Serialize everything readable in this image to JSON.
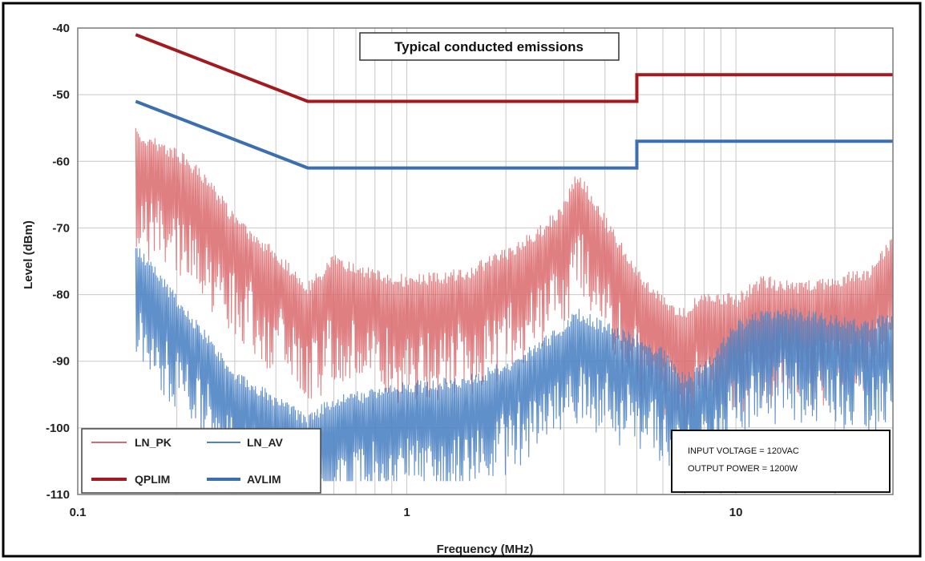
{
  "chart_data": {
    "type": "line",
    "title": "Typical conducted emissions",
    "xlabel": "Frequency (MHz)",
    "ylabel": "Level (dBm)",
    "x_scale": "log",
    "xlim": [
      0.1,
      30
    ],
    "ylim": [
      -110,
      -40
    ],
    "grid": true,
    "x_tick_labels": [
      "0.1",
      "1",
      "10"
    ],
    "y_tick_labels": [
      "-40",
      "-50",
      "-60",
      "-70",
      "-80",
      "-90",
      "-100",
      "-110"
    ],
    "legend_position": "bottom-left",
    "series": [
      {
        "name": "LN_PK",
        "color": "#d9686c",
        "style": "noisy spectrum",
        "x": [
          0.15,
          0.2,
          0.25,
          0.3,
          0.4,
          0.5,
          0.6,
          0.8,
          1.0,
          1.5,
          2.0,
          2.5,
          3.0,
          3.3,
          4.0,
          5.0,
          6.0,
          7.0,
          8.0,
          10.0,
          12.0,
          15.0,
          20.0,
          25.0,
          30.0
        ],
        "values": [
          -55,
          -58,
          -62,
          -68,
          -73,
          -78,
          -74,
          -76,
          -77,
          -76,
          -73,
          -70,
          -66,
          -61,
          -68,
          -76,
          -80,
          -82,
          -79,
          -80,
          -77,
          -78,
          -77,
          -76,
          -71
        ]
      },
      {
        "name": "LN_AV",
        "color": "#4f84c4",
        "style": "noisy spectrum",
        "x": [
          0.15,
          0.2,
          0.25,
          0.3,
          0.4,
          0.5,
          0.6,
          0.8,
          1.0,
          1.5,
          2.0,
          2.5,
          3.0,
          3.3,
          4.0,
          5.0,
          6.0,
          7.0,
          8.0,
          10.0,
          12.0,
          15.0,
          20.0,
          25.0,
          30.0
        ],
        "values": [
          -72,
          -80,
          -86,
          -91,
          -95,
          -98,
          -95,
          -94,
          -93,
          -92,
          -90,
          -87,
          -84,
          -82,
          -84,
          -86,
          -88,
          -92,
          -90,
          -84,
          -82,
          -82,
          -83,
          -84,
          -82
        ]
      },
      {
        "name": "QPLIM",
        "color": "#a3191e",
        "style": "limit",
        "x": [
          0.15,
          0.5,
          5.0,
          5.0,
          30.0
        ],
        "values": [
          -41,
          -51,
          -51,
          -47,
          -47
        ]
      },
      {
        "name": "AVLIM",
        "color": "#3b6fb0",
        "style": "limit",
        "x": [
          0.15,
          0.5,
          5.0,
          5.0,
          30.0
        ],
        "values": [
          -51,
          -61,
          -61,
          -57,
          -57
        ]
      }
    ],
    "annotation": {
      "line1": "INPUT VOLTAGE = 120VAC",
      "line2": "OUTPUT POWER = 1200W"
    }
  }
}
